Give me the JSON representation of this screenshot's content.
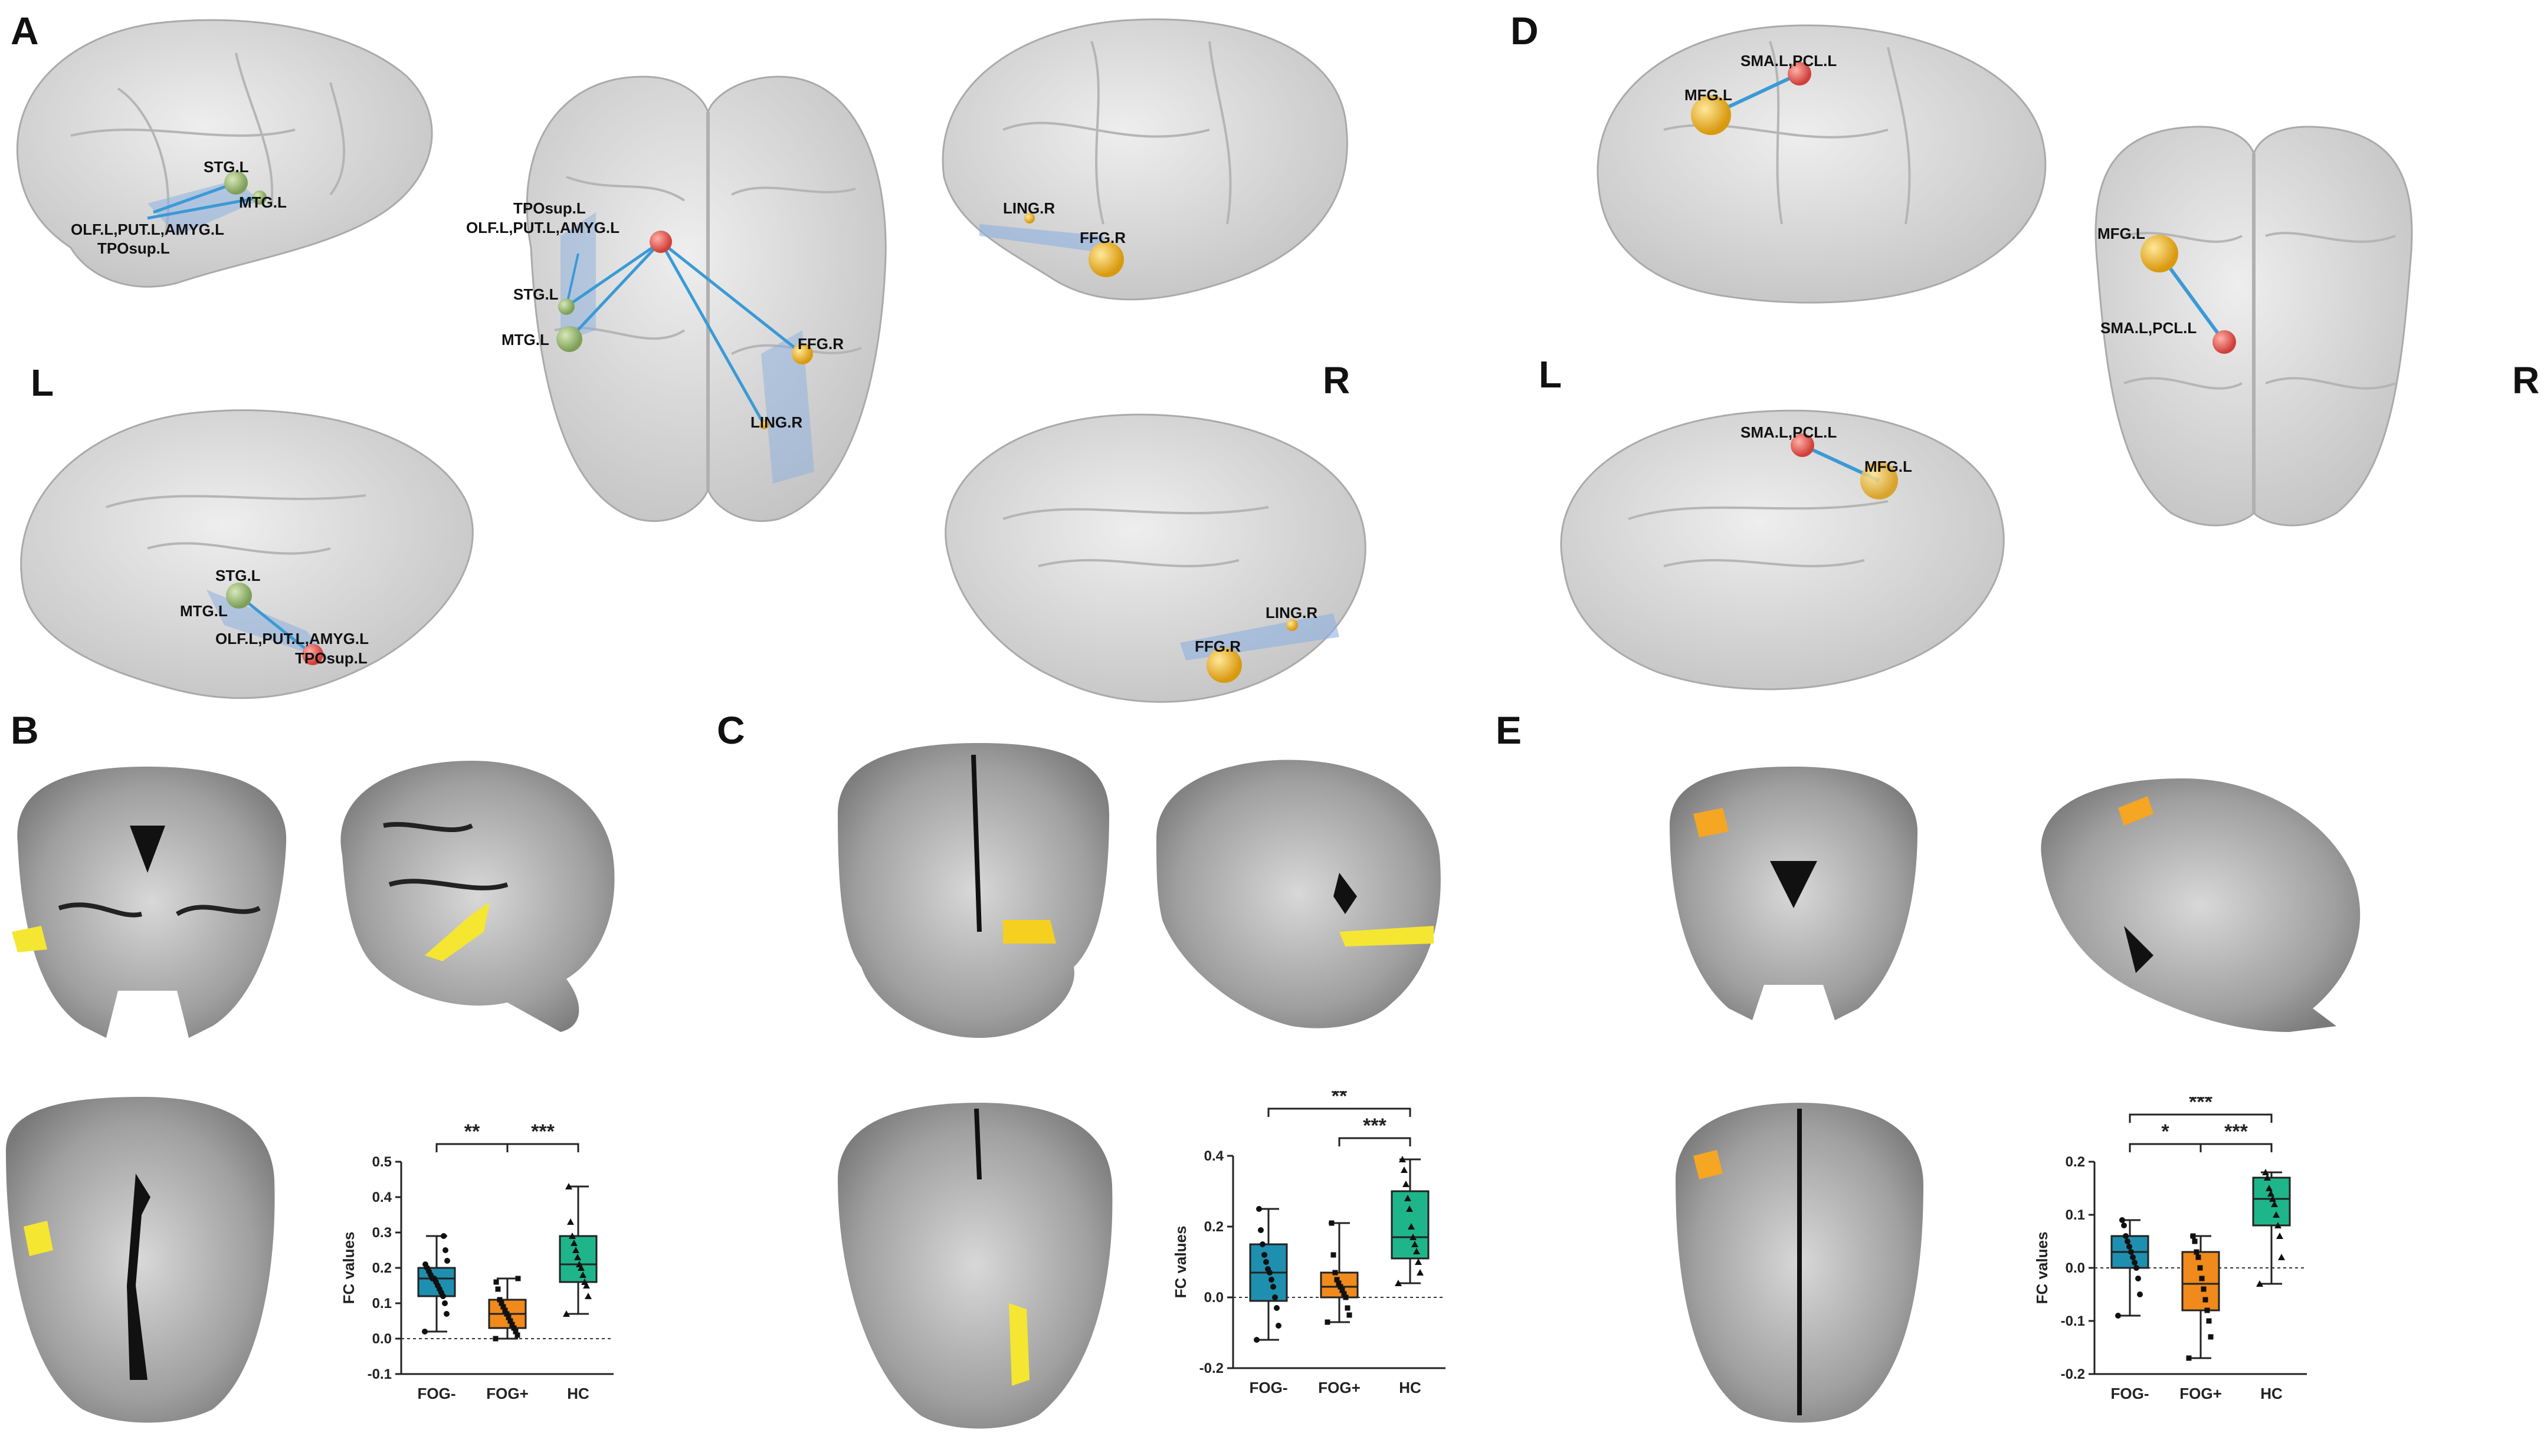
{
  "panels": {
    "A": "A",
    "B": "B",
    "C": "C",
    "D": "D",
    "E": "E"
  },
  "side_labels": {
    "a_left": "L",
    "a_right": "R",
    "d_left": "L",
    "d_right": "R"
  },
  "node_labels": {
    "a_left_top": [
      "STG.L",
      "MTG.L",
      "OLF.L,PUT.L,AMYG.L",
      "TPOsup.L"
    ],
    "a_axial": [
      "TPOsup.L",
      "OLF.L,PUT.L,AMYG.L",
      "STG.L",
      "MTG.L",
      "FFG.R",
      "LING.R"
    ],
    "a_right_top": [
      "LING.R",
      "FFG.R"
    ],
    "a_left_bottom": [
      "STG.L",
      "MTG.L",
      "OLF.L,PUT.L,AMYG.L",
      "TPOsup.L"
    ],
    "a_right_bottom": [
      "LING.R",
      "FFG.R"
    ],
    "d_left_top": [
      "SMA.L,PCL.L",
      "MFG.L"
    ],
    "d_axial": [
      "MFG.L",
      "SMA.L,PCL.L"
    ],
    "d_left_bottom": [
      "SMA.L,PCL.L",
      "MFG.L"
    ]
  },
  "colors": {
    "fog_minus": "#1f8fb0",
    "fog_plus": "#f08a1c",
    "hc": "#1fb58a",
    "node_red": "#e0564f",
    "node_green": "#8fae6a",
    "node_yellow": "#f0b020",
    "edge": "#3a9ad6",
    "brain_gray": "#cfcfcf"
  },
  "chart_data": [
    {
      "id": "B",
      "type": "box",
      "categories": [
        "FOG-",
        "FOG+",
        "HC"
      ],
      "ylabel": "FC values",
      "ylim": [
        -0.1,
        0.5
      ],
      "yticks": [
        "-0.1",
        "0.0",
        "0.1",
        "0.2",
        "0.3",
        "0.4",
        "0.5"
      ],
      "boxes": [
        {
          "min": 0.02,
          "q1": 0.12,
          "median": 0.17,
          "q3": 0.2,
          "max": 0.29
        },
        {
          "min": 0.0,
          "q1": 0.03,
          "median": 0.07,
          "q3": 0.11,
          "max": 0.17
        },
        {
          "min": 0.07,
          "q1": 0.16,
          "median": 0.21,
          "q3": 0.29,
          "max": 0.43
        }
      ],
      "points": [
        [
          0.02,
          0.07,
          0.1,
          0.12,
          0.13,
          0.14,
          0.15,
          0.16,
          0.17,
          0.17,
          0.18,
          0.19,
          0.2,
          0.21,
          0.22,
          0.25,
          0.29
        ],
        [
          0.0,
          0.01,
          0.02,
          0.03,
          0.04,
          0.05,
          0.06,
          0.07,
          0.08,
          0.09,
          0.1,
          0.11,
          0.14,
          0.16,
          0.17
        ],
        [
          0.07,
          0.12,
          0.15,
          0.16,
          0.18,
          0.2,
          0.21,
          0.23,
          0.25,
          0.27,
          0.29,
          0.33,
          0.43
        ]
      ],
      "significance": [
        {
          "from": 0,
          "to": 2,
          "label": "**",
          "level": 1
        },
        {
          "from": 1,
          "to": 2,
          "label": "***",
          "level": 1
        }
      ]
    },
    {
      "id": "C",
      "type": "box",
      "categories": [
        "FOG-",
        "FOG+",
        "HC"
      ],
      "ylabel": "FC values",
      "ylim": [
        -0.2,
        0.4
      ],
      "yticks": [
        "-0.2",
        "0.0",
        "0.2",
        "0.4"
      ],
      "boxes": [
        {
          "min": -0.12,
          "q1": -0.01,
          "median": 0.07,
          "q3": 0.15,
          "max": 0.25
        },
        {
          "min": -0.07,
          "q1": 0.0,
          "median": 0.03,
          "q3": 0.07,
          "max": 0.21
        },
        {
          "min": 0.04,
          "q1": 0.11,
          "median": 0.17,
          "q3": 0.3,
          "max": 0.39
        }
      ],
      "points": [
        [
          -0.12,
          -0.08,
          -0.03,
          0.0,
          0.03,
          0.05,
          0.07,
          0.08,
          0.1,
          0.12,
          0.15,
          0.19,
          0.25
        ],
        [
          -0.07,
          -0.05,
          -0.03,
          0.0,
          0.01,
          0.02,
          0.03,
          0.04,
          0.05,
          0.07,
          0.12,
          0.21
        ],
        [
          0.04,
          0.07,
          0.1,
          0.13,
          0.15,
          0.17,
          0.2,
          0.25,
          0.28,
          0.32,
          0.36,
          0.39
        ]
      ],
      "significance": [
        {
          "from": 0,
          "to": 2,
          "label": "**",
          "level": 2
        },
        {
          "from": 1,
          "to": 2,
          "label": "***",
          "level": 1
        }
      ]
    },
    {
      "id": "E",
      "type": "box",
      "categories": [
        "FOG-",
        "FOG+",
        "HC"
      ],
      "ylabel": "FC values",
      "ylim": [
        -0.2,
        0.2
      ],
      "yticks": [
        "-0.2",
        "-0.1",
        "0.0",
        "0.1",
        "0.2"
      ],
      "boxes": [
        {
          "min": -0.09,
          "q1": 0.0,
          "median": 0.03,
          "q3": 0.06,
          "max": 0.09
        },
        {
          "min": -0.17,
          "q1": -0.08,
          "median": -0.03,
          "q3": 0.03,
          "max": 0.06
        },
        {
          "min": -0.03,
          "q1": 0.08,
          "median": 0.13,
          "q3": 0.17,
          "max": 0.18
        }
      ],
      "points": [
        [
          -0.09,
          -0.05,
          -0.02,
          0.0,
          0.01,
          0.02,
          0.03,
          0.04,
          0.05,
          0.06,
          0.08,
          0.09
        ],
        [
          -0.17,
          -0.13,
          -0.1,
          -0.08,
          -0.06,
          -0.04,
          -0.02,
          0.0,
          0.02,
          0.03,
          0.05,
          0.06
        ],
        [
          -0.03,
          0.02,
          0.06,
          0.08,
          0.1,
          0.12,
          0.13,
          0.14,
          0.15,
          0.17,
          0.18
        ]
      ],
      "significance": [
        {
          "from": 0,
          "to": 2,
          "label": "***",
          "level": 2
        },
        {
          "from": 0,
          "to": 1,
          "label": "*",
          "level": 1
        },
        {
          "from": 1,
          "to": 2,
          "label": "***",
          "level": 1
        }
      ]
    }
  ]
}
